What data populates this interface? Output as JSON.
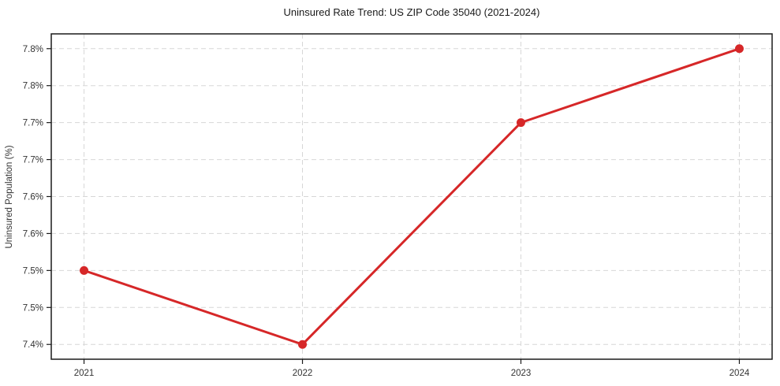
{
  "chart_data": {
    "type": "line",
    "title": "Uninsured Rate Trend: US ZIP Code 35040 (2021-2024)",
    "xlabel": "",
    "ylabel": "Uninsured Population (%)",
    "x": [
      2021,
      2022,
      2023,
      2024
    ],
    "values": [
      7.5,
      7.4,
      7.7,
      7.8
    ],
    "xlim": [
      2020.85,
      2024.15
    ],
    "ylim": [
      7.38,
      7.82
    ],
    "x_ticks": [
      {
        "value": 2021,
        "label": "2021"
      },
      {
        "value": 2022,
        "label": "2022"
      },
      {
        "value": 2023,
        "label": "2023"
      },
      {
        "value": 2024,
        "label": "2024"
      }
    ],
    "y_ticks": [
      {
        "value": 7.4,
        "label": "7.4%"
      },
      {
        "value": 7.45,
        "label": "7.5%"
      },
      {
        "value": 7.5,
        "label": "7.5%"
      },
      {
        "value": 7.55,
        "label": "7.6%"
      },
      {
        "value": 7.6,
        "label": "7.6%"
      },
      {
        "value": 7.65,
        "label": "7.7%"
      },
      {
        "value": 7.7,
        "label": "7.7%"
      },
      {
        "value": 7.75,
        "label": "7.8%"
      },
      {
        "value": 7.8,
        "label": "7.8%"
      }
    ],
    "grid": true,
    "legend": false,
    "line_color": "#d62728",
    "marker_color": "#d62728",
    "grid_color": "#d7d7d7",
    "axis_color": "#1a1a1a",
    "tick_label_color": "#333333"
  }
}
